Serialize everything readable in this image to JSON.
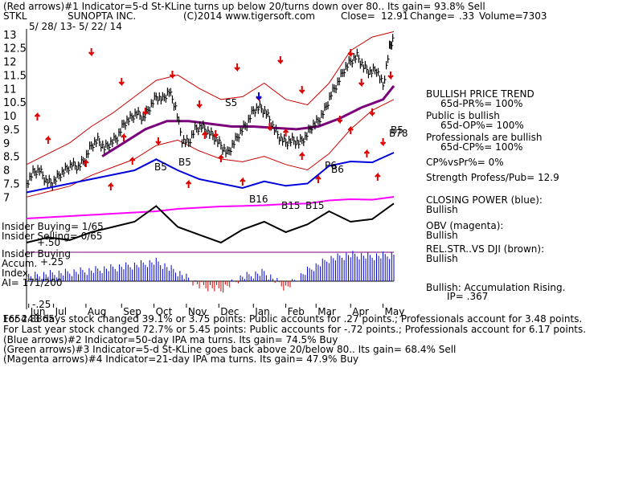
{
  "header": {
    "line1": "(Red arrows)#1 Indicator=5-d St-KLine turns up below 20/turns down over 80.. Its gain= 93.8% Sell",
    "ticker": "STKL",
    "company": "SUNOPTA INC.",
    "source": "(C)2014 www.tigersoft.com",
    "close_label": "Close=",
    "close_value": "12.91",
    "change_label": "Change=",
    "change_value": ".33",
    "volume_label": "Volume=",
    "volume_value": "7303",
    "date_range": "5/ 28/ 13- 5/ 22/ 14"
  },
  "right_panel": {
    "trend_title": "BULLISH PRICE TREND",
    "pr_line": "65d-PR%= 100%",
    "public_title": "Public is bullish",
    "op_line": "65d-OP%= 100%",
    "pro_title": "Professionals are bullish",
    "cp_line": "65d-CP%= 100%",
    "cpvspr": "CP%vsPr%=  0%",
    "strength": "Strength Profess/Pub= 12.9",
    "closing_power_title": "CLOSING POWER (blue):",
    "closing_power_value": "Bullish",
    "obv_title": "OBV (magenta):",
    "obv_value": "Bullish",
    "relstr_title": "REL.STR..VS DJI (brown):",
    "relstr_value": "Bullish",
    "accum_title": "Bullish: Accumulation Rising.",
    "ip_line": "IP=  .367"
  },
  "left_labels": {
    "insider_buying": "Insider Buying= 1/65",
    "insider_selling": "Insider Selling= 0/65",
    "plus50": "+.50",
    "insider_buying2": "Insider Buying",
    "accum": "Accum.",
    "plus25": "+.25",
    "index": "Index",
    "ai": "AI= 171/200",
    "minus25": "-.25"
  },
  "signal_labels": {
    "s5": "S5",
    "b5a": "B5",
    "b5b": "B5",
    "b16": "B16",
    "b15a": "B15",
    "b15b": "B15",
    "b6": "B6",
    "b78": "B78",
    "b5c": "B5",
    "p6": "P6"
  },
  "footer": {
    "line1": "For 243 days stock changed  39.1% or  3.75 points:  Public accounts for  .27 points.;  Professionals account for  3.48 points.",
    "line1_overlay": "1654.8865",
    "line2": "For Last year stock changed  72.7% or  5.45 points:  Public accounts for -.72 points.;  Professionals account for  6.17 points.",
    "line3": "(Blue arrows)#2 Indicator=50-day IPA ma turns. Its gain= 74.5% Buy",
    "line4": "(Green arrows)#3 Indicator=5-d St-KLine goes back above 20/below 80.. Its gain= 68.4% Sell",
    "line5": "(Magenta arrows)#4 Indicator=21-day IPA ma turns. Its gain= 47.9% Buy"
  },
  "colors": {
    "price": "#000000",
    "band": "#cc0000",
    "ma": "#7a007a",
    "cp": "#0000dd",
    "obv": "#ff00ff",
    "relstr": "#000000",
    "accum_pos": "#0000cc",
    "accum_neg": "#cc0000",
    "sell_arrow": "#dd0000",
    "buy_arrow": "#dd0000",
    "blue_arrow": "#0000dd"
  },
  "chart_data": {
    "type": "line",
    "title": "SUNOPTA INC.",
    "y_ticks": [
      "7",
      "7.5",
      "8",
      "8.5",
      "9",
      "9.5",
      "10",
      "10.5",
      "11",
      "11.5",
      "12",
      "12.5",
      "13"
    ],
    "ylim": [
      6.8,
      13.2
    ],
    "x_ticks": [
      "Jun",
      "Jul",
      "Aug",
      "Sep",
      "Oct",
      "Nov",
      "Dec",
      "Jan",
      "Feb",
      "Mar",
      "Apr",
      "May"
    ],
    "x_tick_day": [
      2,
      25,
      55,
      88,
      118,
      148,
      178,
      210,
      240,
      268,
      300,
      330
    ],
    "series": [
      {
        "role": "price",
        "x": [
          0,
          6,
          12,
          18,
          24,
          30,
          36,
          42,
          48,
          54,
          60,
          66,
          72,
          78,
          84,
          90,
          96,
          102,
          108,
          114,
          120,
          126,
          132,
          138,
          144,
          150,
          156,
          162,
          168,
          174,
          180,
          186,
          192,
          198,
          204,
          210,
          216,
          222,
          228,
          234,
          240,
          246,
          252,
          258,
          264,
          270,
          276,
          282,
          288,
          294,
          300,
          306,
          312,
          318,
          324,
          330,
          336,
          340
        ],
        "y": [
          7.5,
          7.9,
          8.0,
          7.6,
          7.5,
          7.8,
          8.0,
          8.2,
          8.1,
          8.4,
          8.9,
          9.1,
          8.8,
          9.0,
          9.2,
          9.7,
          9.9,
          10.1,
          9.9,
          10.3,
          10.7,
          10.6,
          10.9,
          10.3,
          9.1,
          9.0,
          9.5,
          9.6,
          9.4,
          9.2,
          8.9,
          8.6,
          9.0,
          9.4,
          9.7,
          10.2,
          10.3,
          10.1,
          9.6,
          9.2,
          9.0,
          9.1,
          9.0,
          9.2,
          9.6,
          9.8,
          10.2,
          10.8,
          11.2,
          11.7,
          12.0,
          12.2,
          11.8,
          11.6,
          11.7,
          11.1,
          12.5,
          12.91
        ]
      },
      {
        "role": "moving-average",
        "x": [
          70,
          90,
          110,
          130,
          150,
          170,
          190,
          210,
          230,
          250,
          270,
          290,
          310,
          330,
          340
        ],
        "y": [
          8.5,
          9.0,
          9.5,
          9.8,
          9.8,
          9.7,
          9.6,
          9.6,
          9.55,
          9.5,
          9.6,
          9.9,
          10.3,
          10.6,
          11.1
        ]
      },
      {
        "role": "upper-band",
        "x": [
          0,
          20,
          40,
          60,
          80,
          100,
          120,
          140,
          160,
          180,
          200,
          220,
          240,
          260,
          280,
          300,
          320,
          340
        ],
        "y": [
          8.2,
          8.6,
          9.0,
          9.6,
          10.1,
          10.7,
          11.3,
          11.5,
          11.0,
          10.6,
          10.7,
          11.2,
          10.6,
          10.4,
          11.2,
          12.4,
          12.9,
          13.1
        ]
      },
      {
        "role": "lower-band",
        "x": [
          0,
          20,
          40,
          60,
          80,
          100,
          120,
          140,
          160,
          180,
          200,
          220,
          240,
          260,
          280,
          300,
          320,
          340
        ],
        "y": [
          7.0,
          7.2,
          7.4,
          7.8,
          8.1,
          8.4,
          8.9,
          9.1,
          8.7,
          8.4,
          8.3,
          8.5,
          8.2,
          8.0,
          8.6,
          9.5,
          10.2,
          10.6
        ]
      },
      {
        "role": "closing-power",
        "x": [
          0,
          20,
          40,
          60,
          80,
          100,
          120,
          140,
          160,
          180,
          200,
          220,
          240,
          260,
          280,
          300,
          320,
          340
        ],
        "y": [
          0.1,
          0.2,
          0.3,
          0.4,
          0.5,
          0.6,
          0.85,
          0.6,
          0.4,
          0.3,
          0.2,
          0.35,
          0.25,
          0.3,
          0.7,
          0.8,
          0.78,
          1.0
        ]
      },
      {
        "role": "obv",
        "x": [
          0,
          20,
          40,
          60,
          80,
          100,
          120,
          140,
          160,
          180,
          200,
          220,
          240,
          260,
          280,
          300,
          320,
          340
        ],
        "y": [
          0.1,
          0.15,
          0.2,
          0.25,
          0.3,
          0.35,
          0.4,
          0.5,
          0.55,
          0.6,
          0.62,
          0.65,
          0.7,
          0.72,
          0.85,
          0.9,
          0.88,
          1.0
        ]
      },
      {
        "role": "rel-strength",
        "x": [
          0,
          20,
          40,
          60,
          80,
          100,
          120,
          140,
          160,
          180,
          200,
          220,
          240,
          260,
          280,
          300,
          320,
          340
        ],
        "y": [
          0.2,
          0.3,
          0.25,
          0.4,
          0.5,
          0.6,
          0.9,
          0.5,
          0.35,
          0.2,
          0.45,
          0.6,
          0.4,
          0.55,
          0.8,
          0.6,
          0.65,
          0.95
        ]
      },
      {
        "role": "accumulation",
        "x": [
          0,
          20,
          40,
          60,
          80,
          100,
          120,
          140,
          160,
          180,
          200,
          220,
          240,
          260,
          280,
          300,
          320,
          340
        ],
        "y": [
          0.05,
          0.08,
          0.1,
          0.12,
          0.15,
          0.18,
          0.22,
          0.1,
          -0.05,
          -0.1,
          0.05,
          0.1,
          -0.08,
          0.12,
          0.25,
          0.3,
          0.28,
          0.3
        ]
      }
    ]
  }
}
